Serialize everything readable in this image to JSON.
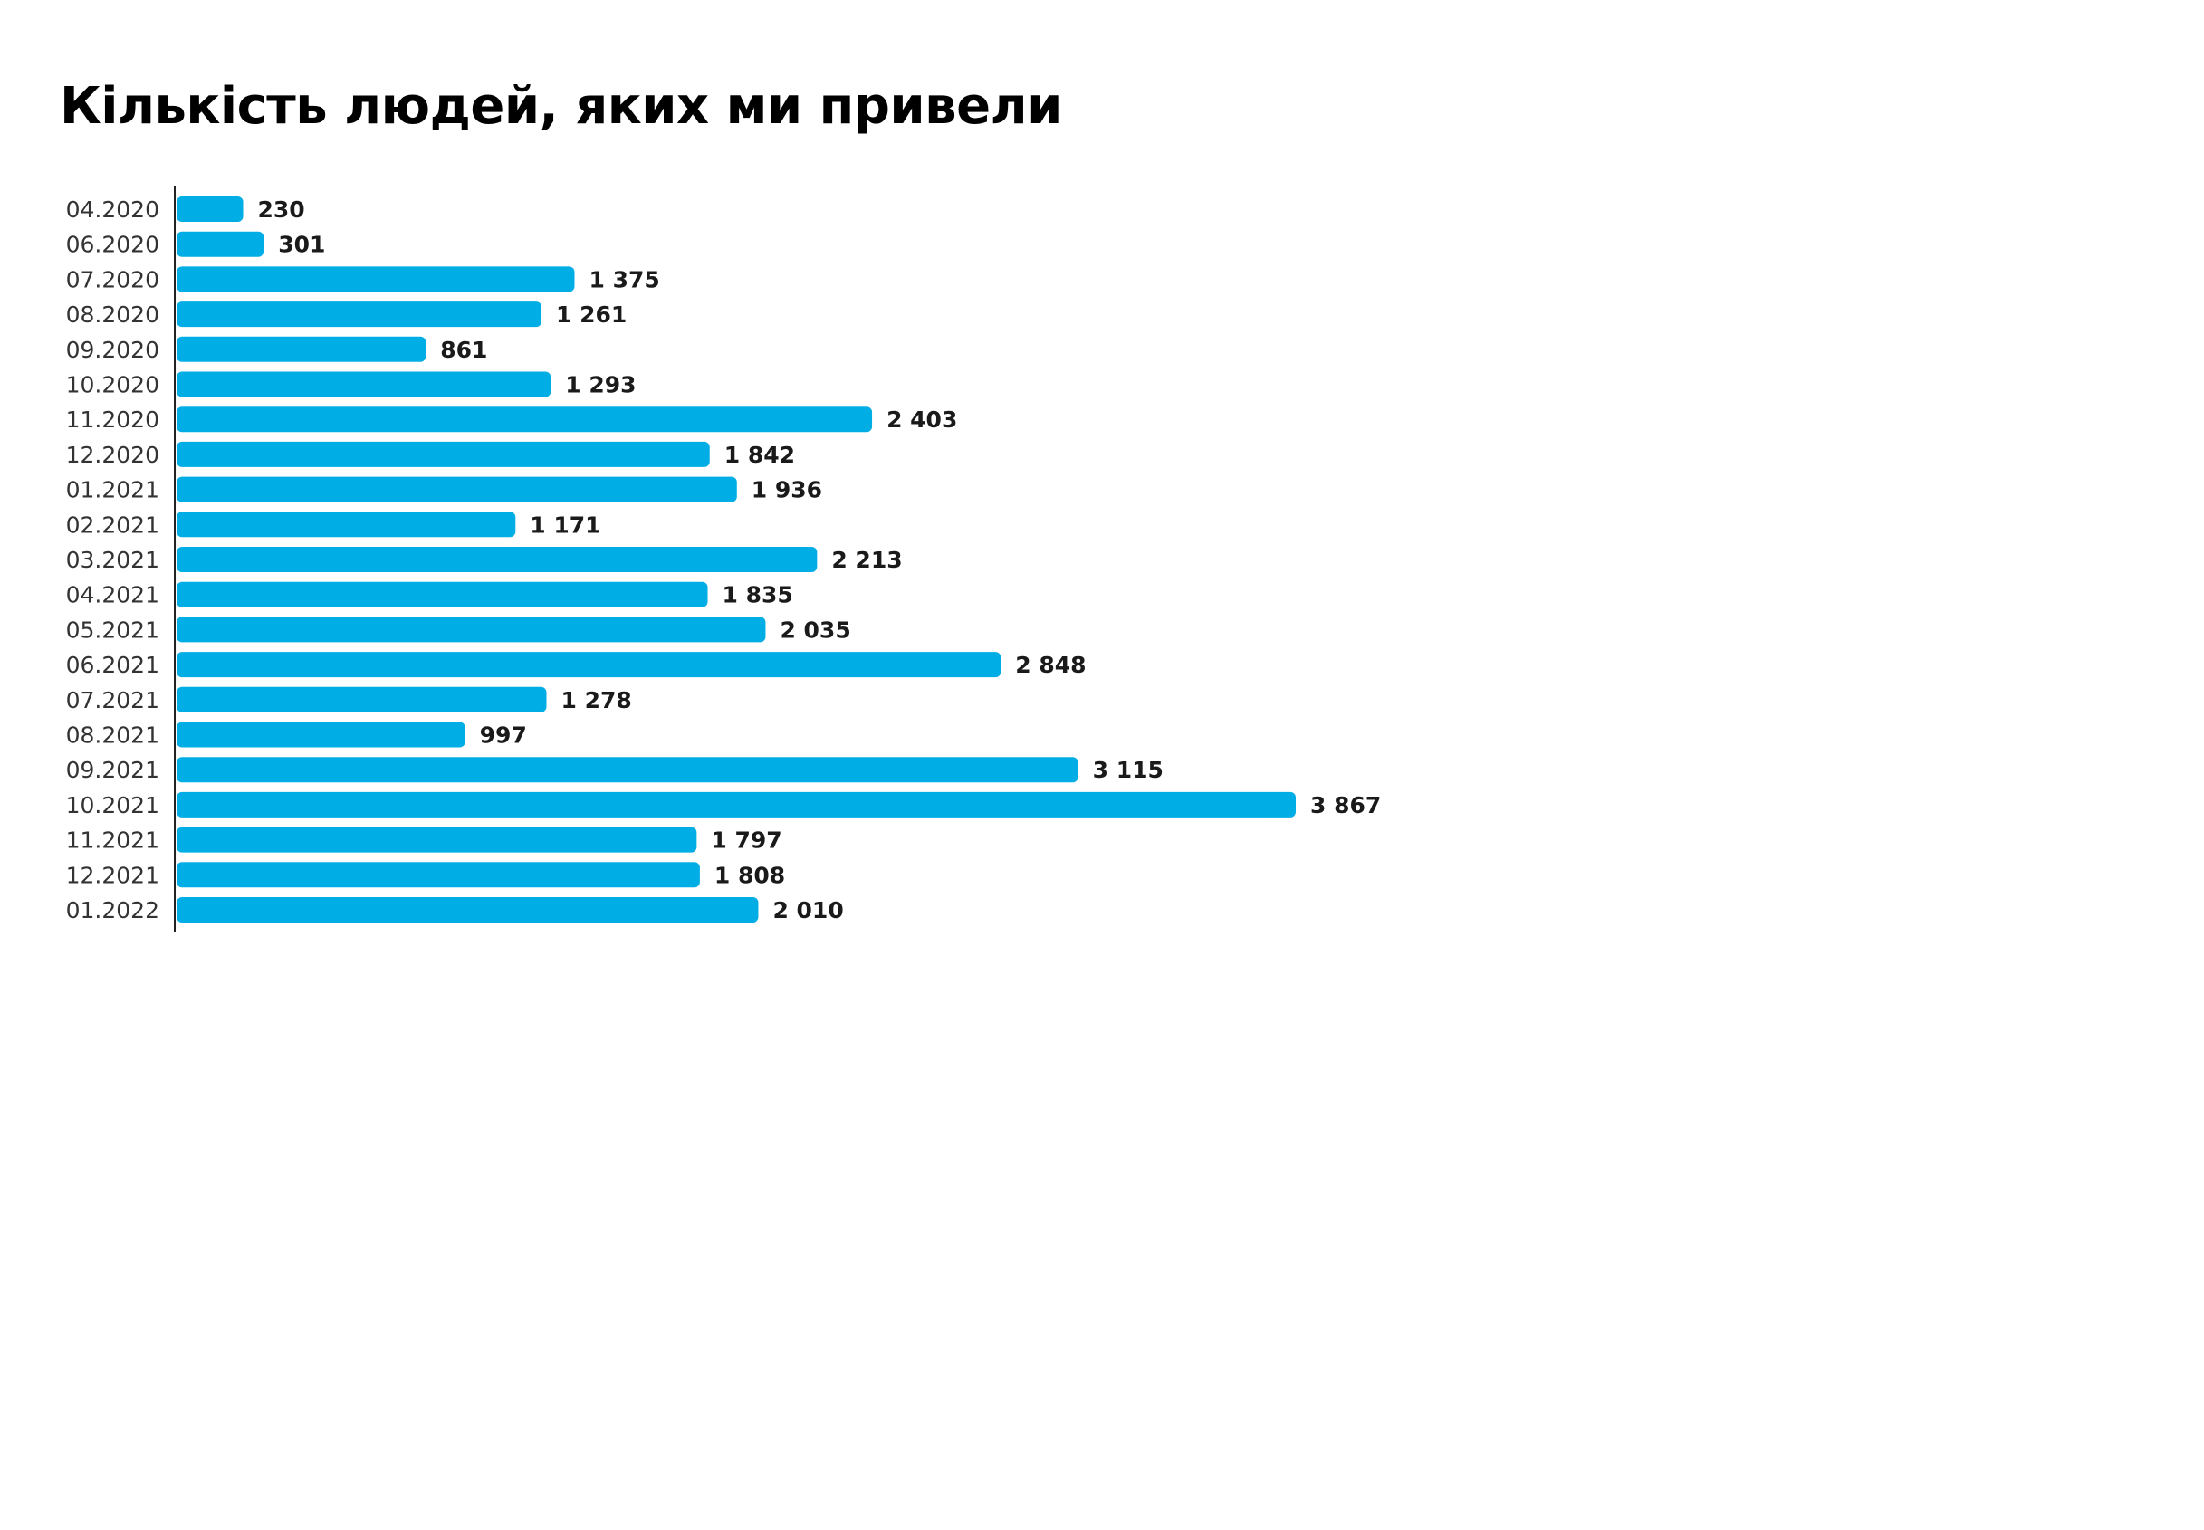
{
  "chart_data": {
    "type": "bar",
    "orientation": "horizontal",
    "title": "Кількість людей, яких ми привели",
    "categories": [
      "04.2020",
      "06.2020",
      "07.2020",
      "08.2020",
      "09.2020",
      "10.2020",
      "11.2020",
      "12.2020",
      "01.2021",
      "02.2021",
      "03.2021",
      "04.2021",
      "05.2021",
      "06.2021",
      "07.2021",
      "08.2021",
      "09.2021",
      "10.2021",
      "11.2021",
      "12.2021",
      "01.2022"
    ],
    "values": [
      230,
      301,
      1375,
      1261,
      861,
      1293,
      2403,
      1842,
      1936,
      1171,
      2213,
      1835,
      2035,
      2848,
      1278,
      997,
      3115,
      3867,
      1797,
      1808,
      2010
    ],
    "value_labels": [
      "230",
      "301",
      "1 375",
      "1 261",
      "861",
      "1 293",
      "2 403",
      "1 842",
      "1 936",
      "1 171",
      "2 213",
      "1 835",
      "2 035",
      "2 848",
      "1 278",
      "997",
      "3 115",
      "3 867",
      "1 797",
      "1 808",
      "2 010"
    ],
    "xlabel": "",
    "ylabel": "",
    "xlim": [
      0,
      3867
    ],
    "grid": false,
    "legend": "none",
    "bar_color": "#00ade4",
    "axis_color": "#222222"
  }
}
